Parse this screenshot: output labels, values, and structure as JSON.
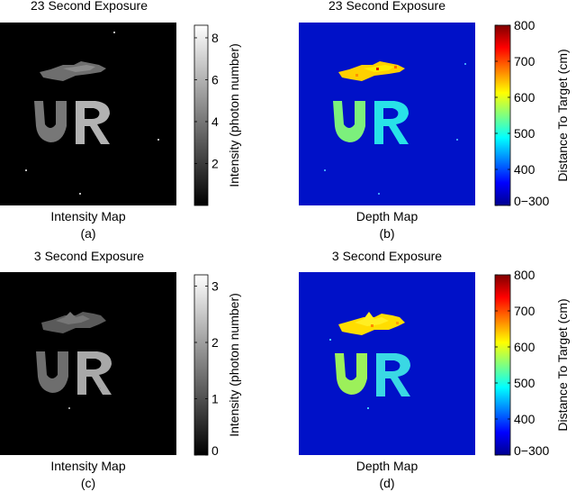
{
  "panels": [
    {
      "title": "23 Second Exposure",
      "xlabel": "Intensity Map",
      "caption": "(a)",
      "colorbar": {
        "type": "gray",
        "label": "Intensity (photon number)",
        "range": [
          0,
          8.6
        ],
        "ticks": [
          "2",
          "4",
          "6",
          "8"
        ]
      }
    },
    {
      "title": "23 Second Exposure",
      "xlabel": "Depth Map",
      "caption": "(b)",
      "colorbar": {
        "type": "jet",
        "label": "Distance To Target (cm)",
        "range": [
          300,
          800
        ],
        "ticks": [
          "0−300",
          "400",
          "500",
          "600",
          "700",
          "800"
        ]
      }
    },
    {
      "title": "3 Second Exposure",
      "xlabel": "Intensity Map",
      "caption": "(c)",
      "colorbar": {
        "type": "gray",
        "label": "Intensity (photon number)",
        "range": [
          0,
          3.2
        ],
        "ticks": [
          "0",
          "1",
          "2",
          "3"
        ]
      }
    },
    {
      "title": "3 Second Exposure",
      "xlabel": "Depth Map",
      "caption": "(d)",
      "colorbar": {
        "type": "jet",
        "label": "Distance To Target (cm)",
        "range": [
          300,
          800
        ],
        "ticks": [
          "0−300",
          "400",
          "500",
          "600",
          "700",
          "800"
        ]
      }
    }
  ],
  "chart_data": [
    {
      "type": "heatmap",
      "title": "23 Second Exposure",
      "xlabel": "Intensity Map",
      "colorbar_label": "Intensity (photon number)",
      "colorbar_range": [
        0,
        8.6
      ],
      "colorbar_ticks": [
        2,
        4,
        6,
        8
      ],
      "colormap": "gray",
      "regions": [
        {
          "label": "object top",
          "value": 5
        },
        {
          "label": "U",
          "value": 5
        },
        {
          "label": "R",
          "value": 7
        },
        {
          "label": "background",
          "value": 0
        }
      ]
    },
    {
      "type": "heatmap",
      "title": "23 Second Exposure",
      "xlabel": "Depth Map",
      "colorbar_label": "Distance To Target (cm)",
      "colorbar_range": [
        300,
        800
      ],
      "colorbar_ticks": [
        300,
        400,
        500,
        600,
        700,
        800
      ],
      "colormap": "jet",
      "regions": [
        {
          "label": "object top",
          "value": 650
        },
        {
          "label": "U",
          "value": 560
        },
        {
          "label": "R",
          "value": 520
        },
        {
          "label": "background",
          "value": 300
        }
      ]
    },
    {
      "type": "heatmap",
      "title": "3 Second Exposure",
      "xlabel": "Intensity Map",
      "colorbar_label": "Intensity (photon number)",
      "colorbar_range": [
        0,
        3.2
      ],
      "colorbar_ticks": [
        0,
        1,
        2,
        3
      ],
      "colormap": "gray",
      "regions": [
        {
          "label": "object top",
          "value": 1.5
        },
        {
          "label": "U",
          "value": 1.6
        },
        {
          "label": "R",
          "value": 2.3
        },
        {
          "label": "background",
          "value": 0
        }
      ]
    },
    {
      "type": "heatmap",
      "title": "3 Second Exposure",
      "xlabel": "Depth Map",
      "colorbar_label": "Distance To Target (cm)",
      "colorbar_range": [
        300,
        800
      ],
      "colorbar_ticks": [
        300,
        400,
        500,
        600,
        700,
        800
      ],
      "colormap": "jet",
      "regions": [
        {
          "label": "object top",
          "value": 640
        },
        {
          "label": "U",
          "value": 590
        },
        {
          "label": "R",
          "value": 520
        },
        {
          "label": "background",
          "value": 300
        }
      ]
    }
  ]
}
